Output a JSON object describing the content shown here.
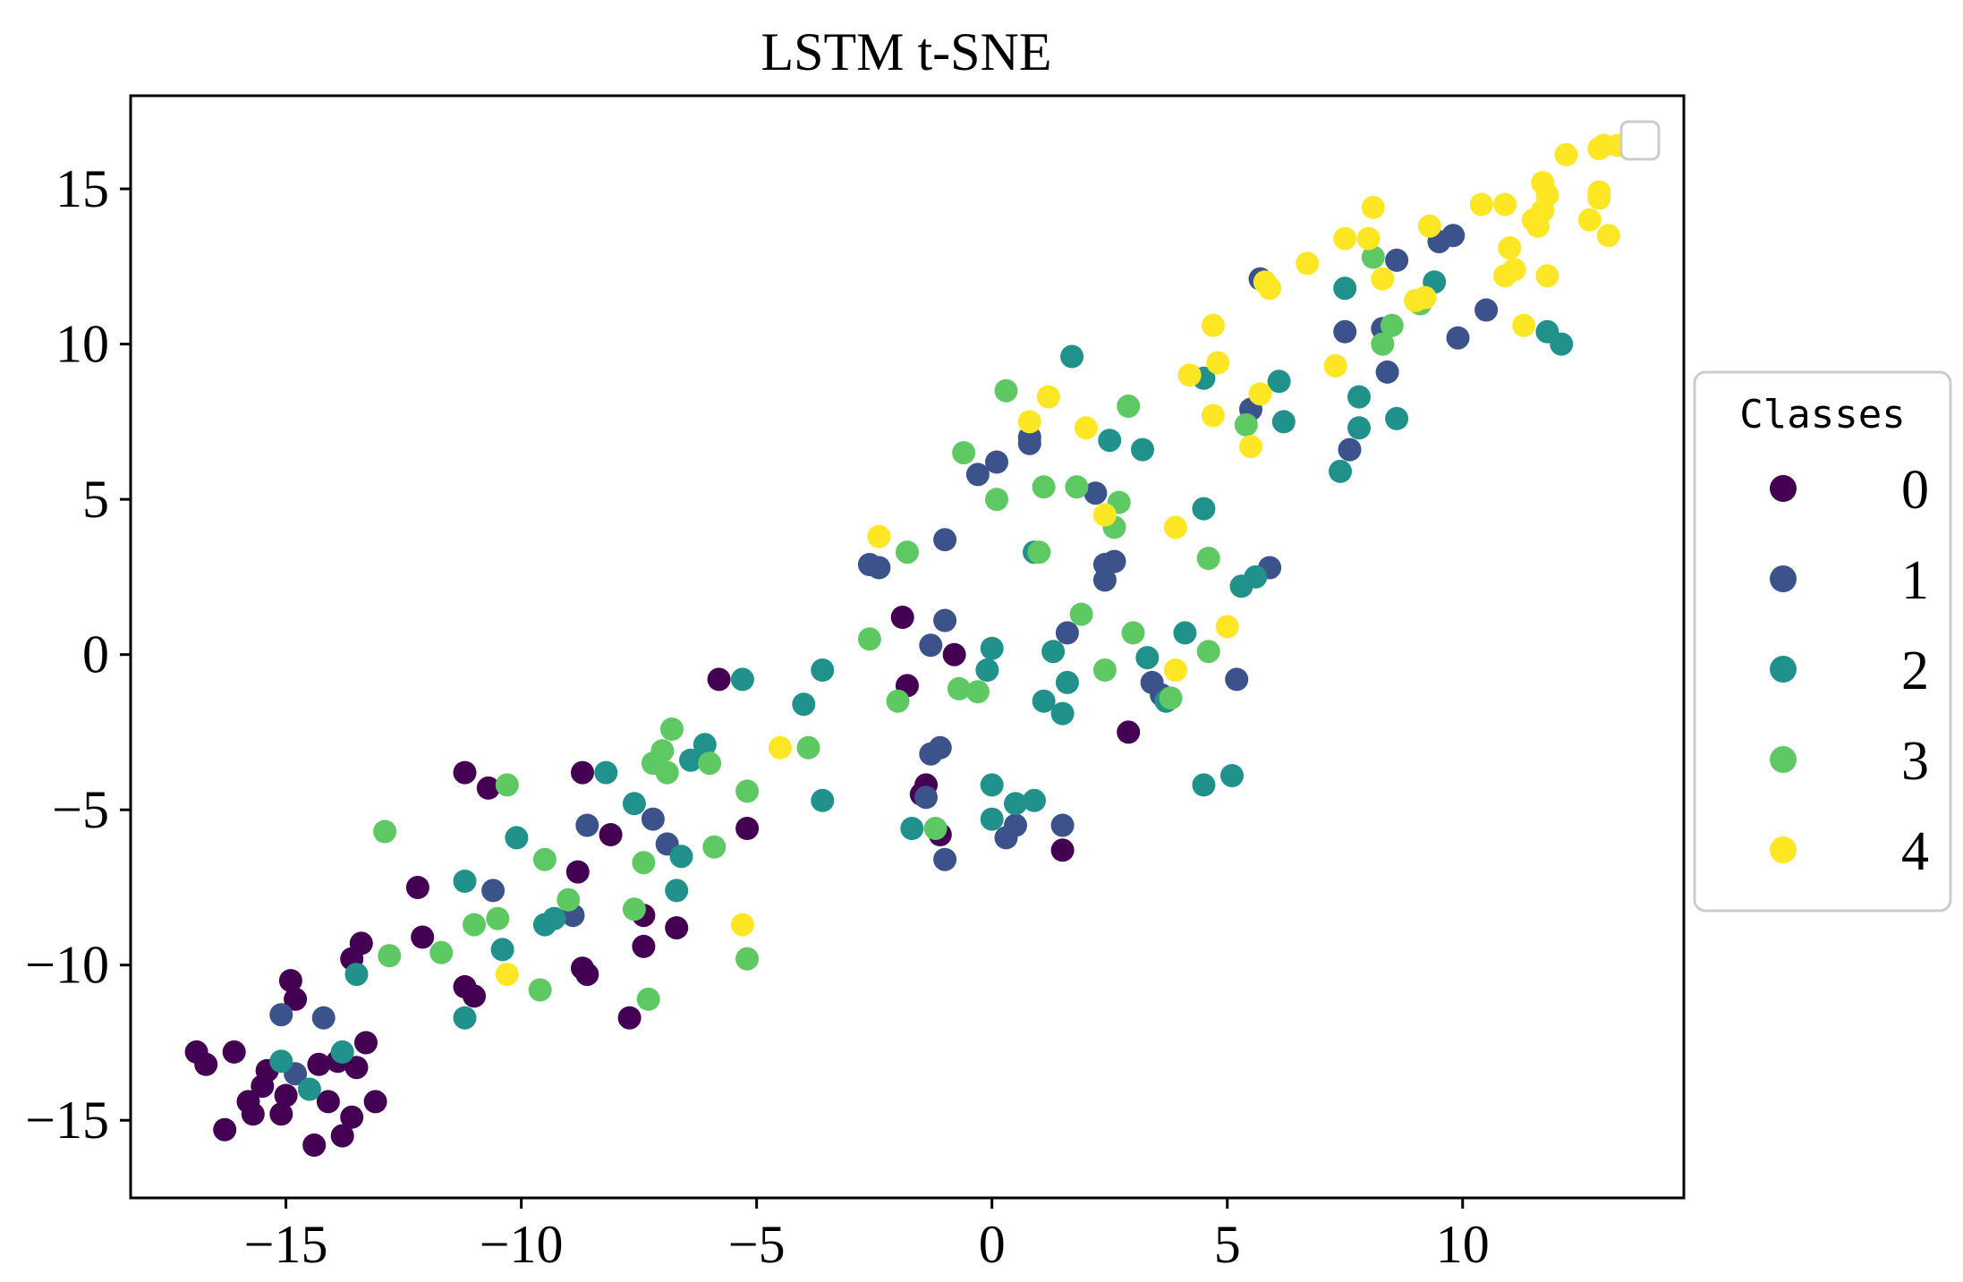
{
  "chart_data": {
    "type": "scatter",
    "title": "LSTM t-SNE",
    "xlabel": "",
    "ylabel": "",
    "xlim": [
      -18.3,
      14.7
    ],
    "ylim": [
      -17.5,
      18.0
    ],
    "x_ticks": [
      -15,
      -10,
      -5,
      0,
      5,
      10
    ],
    "x_tick_labels": [
      "−15",
      "−10",
      "−5",
      "0",
      "5",
      "10"
    ],
    "y_ticks": [
      15,
      10,
      5,
      0,
      -5,
      -10,
      -15
    ],
    "y_tick_labels": [
      "15",
      "10",
      "5",
      "0",
      "−5",
      "−10",
      "−15"
    ],
    "grid": false,
    "legend_title": "Classes",
    "legend_placement": "outside right",
    "series": [
      {
        "name": "0",
        "color": "#440154",
        "points": [
          [
            -16.9,
            -12.8
          ],
          [
            -16.7,
            -13.2
          ],
          [
            -16.3,
            -15.3
          ],
          [
            -16.1,
            -12.8
          ],
          [
            -15.8,
            -14.4
          ],
          [
            -15.7,
            -14.8
          ],
          [
            -15.5,
            -13.9
          ],
          [
            -15.4,
            -13.4
          ],
          [
            -15.1,
            -14.8
          ],
          [
            -15.0,
            -14.2
          ],
          [
            -14.9,
            -10.5
          ],
          [
            -14.8,
            -11.1
          ],
          [
            -14.4,
            -15.8
          ],
          [
            -14.3,
            -13.2
          ],
          [
            -14.1,
            -14.4
          ],
          [
            -13.9,
            -13.1
          ],
          [
            -13.8,
            -15.5
          ],
          [
            -13.6,
            -14.9
          ],
          [
            -13.5,
            -13.3
          ],
          [
            -13.3,
            -12.5
          ],
          [
            -13.1,
            -14.4
          ],
          [
            -13.6,
            -9.8
          ],
          [
            -13.4,
            -9.3
          ],
          [
            -12.2,
            -7.5
          ],
          [
            -12.1,
            -9.1
          ],
          [
            -11.2,
            -3.8
          ],
          [
            -11.2,
            -10.7
          ],
          [
            -11.0,
            -11.0
          ],
          [
            -10.7,
            -4.3
          ],
          [
            -8.7,
            -3.8
          ],
          [
            -8.8,
            -7.0
          ],
          [
            -8.7,
            -10.1
          ],
          [
            -8.6,
            -10.3
          ],
          [
            -8.1,
            -5.8
          ],
          [
            -7.7,
            -11.7
          ],
          [
            -7.4,
            -8.4
          ],
          [
            -7.4,
            -9.4
          ],
          [
            -6.7,
            -8.8
          ],
          [
            -5.8,
            -0.8
          ],
          [
            -5.2,
            -5.6
          ],
          [
            -1.9,
            1.2
          ],
          [
            -1.8,
            -1.0
          ],
          [
            -1.4,
            -4.2
          ],
          [
            -1.5,
            -4.5
          ],
          [
            -1.1,
            -5.8
          ],
          [
            -0.8,
            0.0
          ],
          [
            1.5,
            -6.3
          ],
          [
            2.9,
            -2.5
          ]
        ]
      },
      {
        "name": "1",
        "color": "#3b528b",
        "points": [
          [
            -15.1,
            -11.6
          ],
          [
            -14.8,
            -13.5
          ],
          [
            -14.2,
            -11.7
          ],
          [
            -10.6,
            -7.6
          ],
          [
            -8.9,
            -8.4
          ],
          [
            -8.6,
            -5.5
          ],
          [
            -7.2,
            -5.3
          ],
          [
            -6.9,
            -6.1
          ],
          [
            -2.6,
            2.9
          ],
          [
            -2.4,
            2.8
          ],
          [
            -1.3,
            0.3
          ],
          [
            -1.3,
            -3.2
          ],
          [
            -1.1,
            -3.0
          ],
          [
            -1.0,
            1.1
          ],
          [
            -1.0,
            -6.6
          ],
          [
            -1.0,
            3.7
          ],
          [
            -1.4,
            -4.6
          ],
          [
            -0.3,
            5.8
          ],
          [
            0.1,
            6.2
          ],
          [
            0.3,
            -5.9
          ],
          [
            0.5,
            -5.5
          ],
          [
            0.8,
            7.0
          ],
          [
            0.8,
            6.8
          ],
          [
            1.6,
            0.7
          ],
          [
            1.5,
            -5.5
          ],
          [
            2.2,
            5.2
          ],
          [
            2.4,
            2.9
          ],
          [
            2.4,
            2.4
          ],
          [
            2.6,
            3.0
          ],
          [
            3.4,
            -0.9
          ],
          [
            3.6,
            -1.3
          ],
          [
            5.2,
            -0.8
          ],
          [
            5.5,
            7.9
          ],
          [
            5.7,
            12.1
          ],
          [
            5.9,
            2.8
          ],
          [
            7.5,
            10.4
          ],
          [
            7.6,
            6.6
          ],
          [
            8.4,
            9.1
          ],
          [
            8.6,
            12.7
          ],
          [
            9.5,
            13.3
          ],
          [
            9.8,
            13.5
          ],
          [
            9.9,
            10.2
          ],
          [
            10.5,
            11.1
          ],
          [
            8.3,
            10.5
          ]
        ]
      },
      {
        "name": "2",
        "color": "#21918c",
        "points": [
          [
            -15.1,
            -13.1
          ],
          [
            -14.5,
            -14.0
          ],
          [
            -13.8,
            -12.8
          ],
          [
            -13.5,
            -10.3
          ],
          [
            -11.2,
            -11.7
          ],
          [
            -11.2,
            -7.3
          ],
          [
            -10.4,
            -9.5
          ],
          [
            -10.1,
            -5.9
          ],
          [
            -9.5,
            -8.7
          ],
          [
            -9.3,
            -8.5
          ],
          [
            -8.2,
            -3.8
          ],
          [
            -7.6,
            -4.8
          ],
          [
            -6.7,
            -7.6
          ],
          [
            -6.6,
            -6.5
          ],
          [
            -6.4,
            -3.4
          ],
          [
            -6.1,
            -2.9
          ],
          [
            -5.3,
            -0.8
          ],
          [
            -4.0,
            -1.6
          ],
          [
            -3.6,
            -0.5
          ],
          [
            -3.6,
            -4.7
          ],
          [
            -1.7,
            -5.6
          ],
          [
            -0.1,
            -0.5
          ],
          [
            0.0,
            0.2
          ],
          [
            0.0,
            -4.2
          ],
          [
            0.0,
            -5.3
          ],
          [
            0.5,
            -4.8
          ],
          [
            0.9,
            -4.7
          ],
          [
            0.9,
            3.3
          ],
          [
            1.1,
            -1.5
          ],
          [
            1.3,
            0.1
          ],
          [
            1.5,
            -1.9
          ],
          [
            1.6,
            -0.9
          ],
          [
            1.7,
            9.6
          ],
          [
            2.5,
            6.9
          ],
          [
            3.2,
            6.6
          ],
          [
            3.3,
            -0.1
          ],
          [
            3.7,
            -1.5
          ],
          [
            4.1,
            0.7
          ],
          [
            4.5,
            8.9
          ],
          [
            4.5,
            4.7
          ],
          [
            4.5,
            -4.2
          ],
          [
            5.1,
            -3.9
          ],
          [
            5.3,
            2.2
          ],
          [
            5.6,
            2.5
          ],
          [
            6.1,
            8.8
          ],
          [
            6.2,
            7.5
          ],
          [
            7.4,
            5.9
          ],
          [
            7.5,
            11.8
          ],
          [
            7.8,
            8.3
          ],
          [
            7.8,
            7.3
          ],
          [
            8.6,
            7.6
          ],
          [
            9.4,
            12.0
          ],
          [
            11.8,
            10.4
          ],
          [
            12.1,
            10.0
          ]
        ]
      },
      {
        "name": "3",
        "color": "#5ec962",
        "points": [
          [
            -12.9,
            -5.7
          ],
          [
            -12.8,
            -9.7
          ],
          [
            -11.7,
            -9.6
          ],
          [
            -11.0,
            -8.7
          ],
          [
            -10.3,
            -4.2
          ],
          [
            -10.5,
            -8.5
          ],
          [
            -9.6,
            -10.8
          ],
          [
            -9.5,
            -6.6
          ],
          [
            -9.0,
            -7.9
          ],
          [
            -7.6,
            -8.2
          ],
          [
            -7.4,
            -6.7
          ],
          [
            -7.2,
            -3.5
          ],
          [
            -7.0,
            -3.1
          ],
          [
            -6.8,
            -2.4
          ],
          [
            -7.3,
            -11.1
          ],
          [
            -6.9,
            -3.8
          ],
          [
            -6.0,
            -3.5
          ],
          [
            -5.9,
            -6.2
          ],
          [
            -5.2,
            -4.4
          ],
          [
            -5.2,
            -9.8
          ],
          [
            -3.9,
            -3.0
          ],
          [
            -2.6,
            0.5
          ],
          [
            -2.0,
            -1.5
          ],
          [
            -1.8,
            3.3
          ],
          [
            -1.2,
            -5.6
          ],
          [
            -0.7,
            -1.1
          ],
          [
            -0.6,
            6.5
          ],
          [
            -0.3,
            -1.2
          ],
          [
            0.1,
            5.0
          ],
          [
            0.3,
            8.5
          ],
          [
            1.0,
            3.3
          ],
          [
            1.1,
            5.4
          ],
          [
            1.8,
            5.4
          ],
          [
            1.9,
            1.3
          ],
          [
            2.4,
            -0.5
          ],
          [
            2.6,
            4.1
          ],
          [
            2.7,
            4.9
          ],
          [
            2.9,
            8.0
          ],
          [
            3.0,
            0.7
          ],
          [
            3.8,
            -1.4
          ],
          [
            4.6,
            3.1
          ],
          [
            4.6,
            0.1
          ],
          [
            5.4,
            7.4
          ],
          [
            8.1,
            12.8
          ],
          [
            8.3,
            10.0
          ],
          [
            8.5,
            10.6
          ],
          [
            9.1,
            11.3
          ]
        ]
      },
      {
        "name": "4",
        "color": "#fde725",
        "points": [
          [
            -10.3,
            -10.3
          ],
          [
            -5.3,
            -8.7
          ],
          [
            -4.5,
            -3.0
          ],
          [
            -2.4,
            3.8
          ],
          [
            0.8,
            7.5
          ],
          [
            1.2,
            8.3
          ],
          [
            2.0,
            7.3
          ],
          [
            2.4,
            4.5
          ],
          [
            3.9,
            4.1
          ],
          [
            3.9,
            -0.5
          ],
          [
            4.2,
            9.0
          ],
          [
            4.7,
            7.7
          ],
          [
            4.7,
            10.6
          ],
          [
            4.8,
            9.4
          ],
          [
            5.0,
            0.9
          ],
          [
            5.5,
            6.7
          ],
          [
            5.7,
            8.4
          ],
          [
            5.8,
            12.0
          ],
          [
            5.9,
            11.8
          ],
          [
            6.7,
            12.6
          ],
          [
            7.3,
            9.3
          ],
          [
            7.5,
            13.4
          ],
          [
            8.0,
            13.4
          ],
          [
            8.1,
            14.4
          ],
          [
            8.3,
            12.1
          ],
          [
            9.0,
            11.4
          ],
          [
            9.2,
            11.5
          ],
          [
            9.3,
            13.8
          ],
          [
            10.4,
            14.5
          ],
          [
            10.9,
            14.5
          ],
          [
            10.9,
            12.2
          ],
          [
            11.0,
            13.1
          ],
          [
            11.1,
            12.4
          ],
          [
            11.3,
            10.6
          ],
          [
            11.5,
            14.0
          ],
          [
            11.6,
            13.8
          ],
          [
            11.7,
            14.3
          ],
          [
            11.7,
            15.2
          ],
          [
            11.8,
            14.8
          ],
          [
            11.8,
            12.2
          ],
          [
            12.2,
            16.1
          ],
          [
            12.7,
            14.0
          ],
          [
            12.9,
            14.9
          ],
          [
            12.9,
            14.7
          ],
          [
            12.9,
            16.3
          ],
          [
            13.0,
            16.4
          ],
          [
            13.1,
            13.5
          ],
          [
            13.3,
            16.4
          ]
        ]
      }
    ]
  }
}
